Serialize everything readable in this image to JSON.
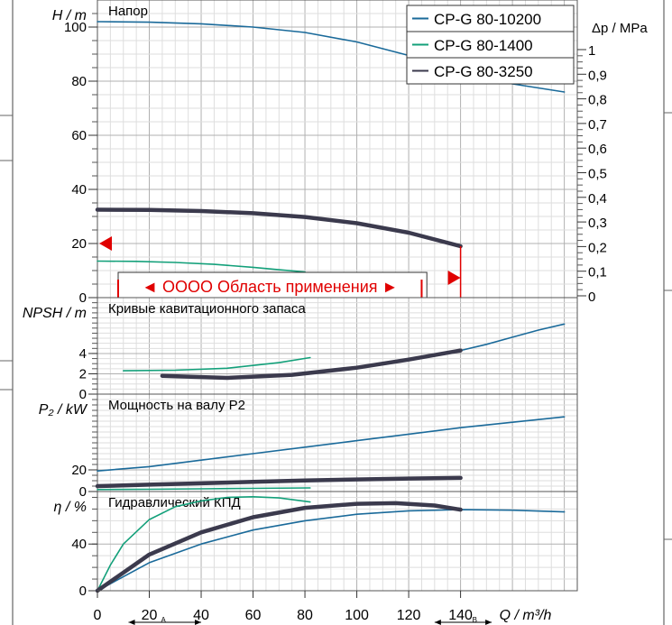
{
  "chart_data": {
    "type": "line",
    "x_axis": {
      "label": "Q / m³/h",
      "range": [
        0,
        185
      ],
      "ticks": [
        0,
        20,
        40,
        60,
        80,
        100,
        120,
        140
      ],
      "tick_labels": [
        "0",
        "20",
        "40",
        "60",
        "80",
        "100",
        "120",
        "140"
      ],
      "marker_a": "A",
      "marker_b": "B"
    },
    "legend": {
      "position": "top-right",
      "entries": [
        {
          "name": "CP-G 80-10200",
          "color": "#1a6a9a"
        },
        {
          "name": "CP-G 80-1400",
          "color": "#13a07a"
        },
        {
          "name": "CP-G 80-3250",
          "color": "#3b3a4d"
        }
      ]
    },
    "panels": [
      {
        "id": "head",
        "title": "Напор",
        "ylabel": "H / m",
        "ylim": [
          0,
          110
        ],
        "yticks": [
          0,
          20,
          40,
          60,
          80,
          100
        ],
        "right_axis": {
          "label": "Δp / MPa",
          "ticks": [
            "0",
            "0,1",
            "0,2",
            "0,3",
            "0,4",
            "0,5",
            "0,6",
            "0,7",
            "0,8",
            "0,9",
            "1"
          ]
        },
        "range_label": "◄ OOOO Область применения ►",
        "series": [
          {
            "name": "CP-G 80-10200",
            "points": [
              [
                0,
                102
              ],
              [
                20,
                101.8
              ],
              [
                40,
                101.2
              ],
              [
                60,
                100
              ],
              [
                80,
                98
              ],
              [
                100,
                94.5
              ],
              [
                120,
                89.5
              ],
              [
                140,
                84
              ],
              [
                160,
                79
              ],
              [
                180,
                76
              ]
            ]
          },
          {
            "name": "CP-G 80-1400",
            "points": [
              [
                0,
                13.5
              ],
              [
                15,
                13.4
              ],
              [
                30,
                13
              ],
              [
                45,
                12.3
              ],
              [
                60,
                11.2
              ],
              [
                70,
                10.3
              ],
              [
                80,
                9.5
              ]
            ]
          },
          {
            "name": "CP-G 80-3250",
            "points": [
              [
                0,
                32.5
              ],
              [
                20,
                32.4
              ],
              [
                40,
                32
              ],
              [
                60,
                31.2
              ],
              [
                80,
                29.8
              ],
              [
                100,
                27.5
              ],
              [
                120,
                24
              ],
              [
                140,
                19
              ]
            ]
          }
        ]
      },
      {
        "id": "npsh",
        "title": "Кривые кавитационного запаса",
        "ylabel": "NPSH / m",
        "ylim": [
          0,
          9.5
        ],
        "yticks": [
          0,
          2,
          4
        ],
        "series": [
          {
            "name": "CP-G 80-10200",
            "points": [
              [
                140,
                4.3
              ],
              [
                150,
                4.9
              ],
              [
                160,
                5.6
              ],
              [
                170,
                6.3
              ],
              [
                180,
                6.9
              ]
            ]
          },
          {
            "name": "CP-G 80-1400",
            "points": [
              [
                10,
                2.3
              ],
              [
                30,
                2.35
              ],
              [
                50,
                2.55
              ],
              [
                70,
                3.1
              ],
              [
                82,
                3.6
              ]
            ]
          },
          {
            "name": "CP-G 80-3250",
            "points": [
              [
                25,
                1.8
              ],
              [
                50,
                1.6
              ],
              [
                75,
                1.9
              ],
              [
                100,
                2.6
              ],
              [
                120,
                3.4
              ],
              [
                140,
                4.3
              ]
            ]
          }
        ]
      },
      {
        "id": "power",
        "title": "Мощность на валу P2",
        "ylabel": "P₂ / kW",
        "ylim": [
          0,
          90
        ],
        "yticks": [
          0,
          20
        ],
        "series": [
          {
            "name": "CP-G 80-10200",
            "points": [
              [
                0,
                19
              ],
              [
                20,
                23
              ],
              [
                40,
                29
              ],
              [
                60,
                35
              ],
              [
                80,
                41
              ],
              [
                100,
                47
              ],
              [
                120,
                53
              ],
              [
                140,
                59
              ],
              [
                160,
                64
              ],
              [
                180,
                69
              ]
            ]
          },
          {
            "name": "CP-G 80-1400",
            "points": [
              [
                0,
                1.8
              ],
              [
                20,
                2.1
              ],
              [
                40,
                2.5
              ],
              [
                60,
                2.9
              ],
              [
                82,
                3.3
              ]
            ]
          },
          {
            "name": "CP-G 80-3250",
            "points": [
              [
                0,
                5
              ],
              [
                20,
                6.3
              ],
              [
                40,
                7.6
              ],
              [
                60,
                9.0
              ],
              [
                80,
                10.2
              ],
              [
                100,
                11.2
              ],
              [
                120,
                12.0
              ],
              [
                140,
                12.6
              ]
            ]
          }
        ]
      },
      {
        "id": "eta",
        "title": "Гидравлический КПД",
        "ylabel": "η / %",
        "ylim": [
          0,
          85
        ],
        "yticks": [
          0,
          40
        ],
        "series": [
          {
            "name": "CP-G 80-10200",
            "points": [
              [
                0,
                0
              ],
              [
                20,
                24
              ],
              [
                40,
                40
              ],
              [
                60,
                52
              ],
              [
                80,
                60
              ],
              [
                100,
                65.5
              ],
              [
                120,
                68.5
              ],
              [
                140,
                69.5
              ],
              [
                160,
                69
              ],
              [
                180,
                67.5
              ]
            ]
          },
          {
            "name": "CP-G 80-1400",
            "points": [
              [
                0,
                0
              ],
              [
                5,
                22
              ],
              [
                10,
                40
              ],
              [
                20,
                61
              ],
              [
                30,
                72
              ],
              [
                40,
                77
              ],
              [
                50,
                80
              ],
              [
                60,
                80.5
              ],
              [
                70,
                79.5
              ],
              [
                82,
                76
              ]
            ]
          },
          {
            "name": "CP-G 80-3250",
            "points": [
              [
                0,
                0
              ],
              [
                20,
                31
              ],
              [
                40,
                50
              ],
              [
                60,
                63
              ],
              [
                80,
                71
              ],
              [
                100,
                74.5
              ],
              [
                115,
                75
              ],
              [
                130,
                73
              ],
              [
                140,
                69.5
              ]
            ]
          }
        ]
      }
    ]
  }
}
